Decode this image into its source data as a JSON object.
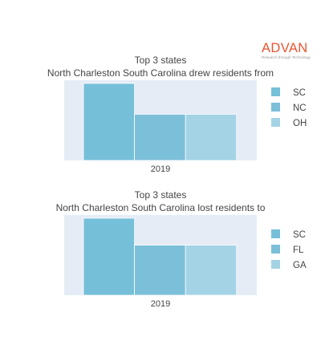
{
  "brand": {
    "name": "ADVAN",
    "tagline": "Research through Technology",
    "color": "#e8542f"
  },
  "chart_data": [
    {
      "type": "bar",
      "title": "Top 3 states",
      "subtitle": "North Charleston South Carolina drew residents from",
      "categories": [
        "2019"
      ],
      "series": [
        {
          "name": "SC",
          "values": [
            1.0
          ],
          "color": "#76bfd8"
        },
        {
          "name": "NC",
          "values": [
            0.6
          ],
          "color": "#7cbfd9"
        },
        {
          "name": "OH",
          "values": [
            0.6
          ],
          "color": "#a3d3e5"
        }
      ],
      "xlabel": "",
      "ylabel": "",
      "ylim": [
        0,
        1.0
      ],
      "grid": false,
      "legend": "right"
    },
    {
      "type": "bar",
      "title": "Top 3 states",
      "subtitle": "North Charleston South Carolina lost residents to",
      "categories": [
        "2019"
      ],
      "series": [
        {
          "name": "SC",
          "values": [
            1.0
          ],
          "color": "#76bfd8"
        },
        {
          "name": "FL",
          "values": [
            0.65
          ],
          "color": "#7cbfd9"
        },
        {
          "name": "GA",
          "values": [
            0.65
          ],
          "color": "#a3d3e5"
        }
      ],
      "xlabel": "",
      "ylabel": "",
      "ylim": [
        0,
        1.0
      ],
      "grid": false,
      "legend": "right"
    }
  ]
}
